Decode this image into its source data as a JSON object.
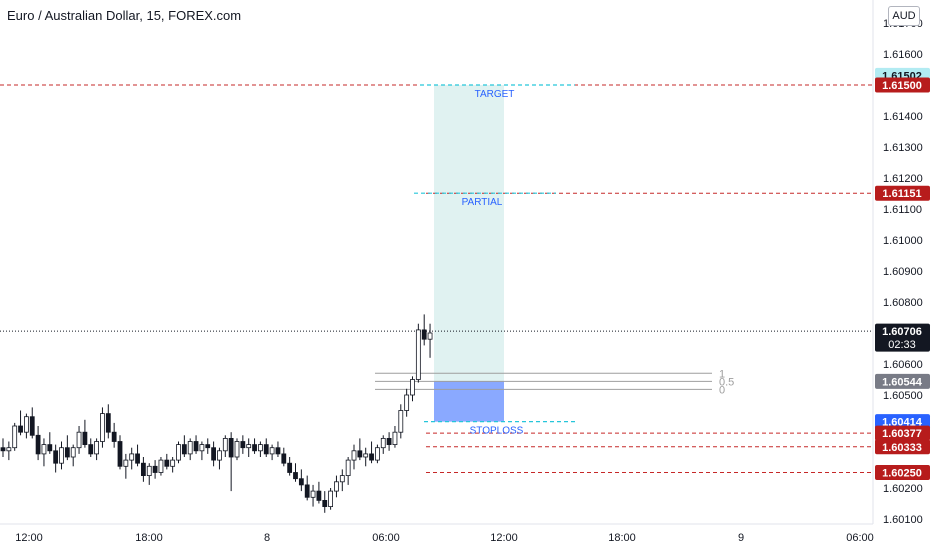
{
  "header": {
    "title": "Euro / Australian Dollar, 15, FOREX.com",
    "currency_button": "AUD"
  },
  "chart_data": {
    "type": "candlestick",
    "title": "Euro / Australian Dollar, 15, FOREX.com",
    "symbol": "EURAUD",
    "timeframe": "15",
    "y_axis": {
      "position": "right",
      "ylim": [
        1.6008,
        1.6172
      ],
      "ticks": [
        "1.60100",
        "1.60200",
        "1.60500",
        "1.60600",
        "1.60800",
        "1.60900",
        "1.61000",
        "1.61100",
        "1.61200",
        "1.61300",
        "1.61400",
        "1.61600",
        "1.61700"
      ]
    },
    "x_axis": {
      "ticks": [
        "12:00",
        "18:00",
        "8",
        "06:00",
        "12:00",
        "18:00",
        "9",
        "06:00"
      ]
    },
    "price_labels": [
      {
        "value": "1.61502",
        "bg": "#b2ebf2",
        "fg": "#131722"
      },
      {
        "value": "1.61500",
        "bg": "#b71c1c",
        "fg": "#ffffff"
      },
      {
        "value": "1.61151",
        "bg": "#b71c1c",
        "fg": "#ffffff"
      },
      {
        "value": "1.60706",
        "sub": "02:33",
        "bg": "#131722",
        "fg": "#ffffff"
      },
      {
        "value": "1.60544",
        "bg": "#787b86",
        "fg": "#ffffff"
      },
      {
        "value": "1.60414",
        "bg": "#2962ff",
        "fg": "#ffffff"
      },
      {
        "value": "1.60377",
        "bg": "#b71c1c",
        "fg": "#ffffff"
      },
      {
        "value": "1.60333",
        "bg": "#b71c1c",
        "fg": "#ffffff"
      },
      {
        "value": "1.60250",
        "bg": "#b71c1c",
        "fg": "#ffffff"
      }
    ],
    "horizontal_lines": [
      {
        "price": 1.615,
        "color": "#c62828",
        "style": "dashed"
      },
      {
        "price": 1.61151,
        "color": "#c62828",
        "style": "dashed"
      },
      {
        "price": 1.60706,
        "color": "#131722",
        "style": "dotted"
      },
      {
        "price": 1.60377,
        "color": "#c62828",
        "style": "dashed"
      },
      {
        "price": 1.60333,
        "color": "#c62828",
        "style": "dashed"
      },
      {
        "price": 1.6025,
        "color": "#c62828",
        "style": "dashed"
      }
    ],
    "annotations": [
      {
        "text": "TARGET",
        "price": 1.615
      },
      {
        "text": "PARTIAL",
        "price": 1.61151
      },
      {
        "text": "STOPLOSS",
        "price": 1.60414
      }
    ],
    "position_tool": {
      "target": 1.615,
      "entry": 1.60544,
      "stop": 1.60414,
      "profit_color": "#b2dfdb",
      "loss_color": "#2962ff"
    },
    "fib_levels": [
      {
        "label": "1",
        "price": 1.6057
      },
      {
        "label": "0.5",
        "price": 1.60544
      },
      {
        "label": "0",
        "price": 1.60518
      }
    ],
    "candles": [
      [
        1.6033,
        1.6036,
        1.603,
        1.6032
      ],
      [
        1.6032,
        1.6035,
        1.6029,
        1.6033
      ],
      [
        1.6033,
        1.6041,
        1.6032,
        1.604
      ],
      [
        1.604,
        1.6045,
        1.6037,
        1.6038
      ],
      [
        1.6038,
        1.6044,
        1.6036,
        1.6043
      ],
      [
        1.6043,
        1.6046,
        1.6036,
        1.6037
      ],
      [
        1.6037,
        1.604,
        1.6029,
        1.6031
      ],
      [
        1.6031,
        1.6036,
        1.6027,
        1.6034
      ],
      [
        1.6034,
        1.6038,
        1.6031,
        1.6032
      ],
      [
        1.6032,
        1.6034,
        1.6025,
        1.6028
      ],
      [
        1.6028,
        1.6035,
        1.6026,
        1.6033
      ],
      [
        1.6033,
        1.6037,
        1.6029,
        1.603
      ],
      [
        1.603,
        1.6034,
        1.6027,
        1.6033
      ],
      [
        1.6033,
        1.604,
        1.6031,
        1.6038
      ],
      [
        1.6038,
        1.6042,
        1.6033,
        1.6034
      ],
      [
        1.6034,
        1.6036,
        1.603,
        1.6031
      ],
      [
        1.6031,
        1.6036,
        1.6029,
        1.6035
      ],
      [
        1.6035,
        1.6046,
        1.6033,
        1.6044
      ],
      [
        1.6044,
        1.6047,
        1.6036,
        1.6038
      ],
      [
        1.6038,
        1.6041,
        1.6033,
        1.6035
      ],
      [
        1.6035,
        1.6037,
        1.6026,
        1.6027
      ],
      [
        1.6027,
        1.6031,
        1.6023,
        1.6029
      ],
      [
        1.6029,
        1.6033,
        1.6026,
        1.6031
      ],
      [
        1.6031,
        1.6034,
        1.6027,
        1.6028
      ],
      [
        1.6028,
        1.603,
        1.6022,
        1.6024
      ],
      [
        1.6024,
        1.6028,
        1.6021,
        1.6027
      ],
      [
        1.6027,
        1.6029,
        1.6023,
        1.6025
      ],
      [
        1.6025,
        1.603,
        1.6024,
        1.6029
      ],
      [
        1.6029,
        1.6031,
        1.6026,
        1.6027
      ],
      [
        1.6027,
        1.603,
        1.6025,
        1.6029
      ],
      [
        1.6029,
        1.6035,
        1.6028,
        1.6034
      ],
      [
        1.6034,
        1.6037,
        1.603,
        1.6031
      ],
      [
        1.6031,
        1.6036,
        1.6029,
        1.6035
      ],
      [
        1.6035,
        1.6037,
        1.6031,
        1.6032
      ],
      [
        1.6032,
        1.6035,
        1.6029,
        1.6034
      ],
      [
        1.6034,
        1.6036,
        1.6031,
        1.6033
      ],
      [
        1.6033,
        1.6035,
        1.6027,
        1.6029
      ],
      [
        1.6029,
        1.6033,
        1.6026,
        1.6032
      ],
      [
        1.6032,
        1.6037,
        1.603,
        1.6036
      ],
      [
        1.6036,
        1.6038,
        1.6019,
        1.603
      ],
      [
        1.603,
        1.6036,
        1.6029,
        1.6035
      ],
      [
        1.6035,
        1.6037,
        1.6031,
        1.6033
      ],
      [
        1.6033,
        1.6036,
        1.603,
        1.6034
      ],
      [
        1.6034,
        1.6036,
        1.6031,
        1.6032
      ],
      [
        1.6032,
        1.6035,
        1.603,
        1.6034
      ],
      [
        1.6034,
        1.6036,
        1.603,
        1.6031
      ],
      [
        1.6031,
        1.6034,
        1.6029,
        1.6033
      ],
      [
        1.6033,
        1.6035,
        1.603,
        1.6031
      ],
      [
        1.6031,
        1.6033,
        1.6027,
        1.6028
      ],
      [
        1.6028,
        1.603,
        1.6024,
        1.6025
      ],
      [
        1.6025,
        1.6028,
        1.6022,
        1.6023
      ],
      [
        1.6023,
        1.6026,
        1.6019,
        1.6021
      ],
      [
        1.6021,
        1.6024,
        1.6016,
        1.6017
      ],
      [
        1.6017,
        1.6021,
        1.6014,
        1.6019
      ],
      [
        1.6019,
        1.6022,
        1.6015,
        1.6016
      ],
      [
        1.6016,
        1.6019,
        1.6012,
        1.6014
      ],
      [
        1.6014,
        1.602,
        1.6013,
        1.6019
      ],
      [
        1.6019,
        1.6024,
        1.6017,
        1.6022
      ],
      [
        1.6022,
        1.6026,
        1.6019,
        1.6024
      ],
      [
        1.6024,
        1.603,
        1.6021,
        1.6029
      ],
      [
        1.6029,
        1.6034,
        1.6026,
        1.6032
      ],
      [
        1.6032,
        1.6036,
        1.6029,
        1.603
      ],
      [
        1.603,
        1.6033,
        1.6027,
        1.6031
      ],
      [
        1.6031,
        1.6035,
        1.6028,
        1.6029
      ],
      [
        1.6029,
        1.6034,
        1.6028,
        1.6033
      ],
      [
        1.6033,
        1.6037,
        1.6031,
        1.6036
      ],
      [
        1.6036,
        1.6038,
        1.6032,
        1.6034
      ],
      [
        1.6034,
        1.604,
        1.6033,
        1.6038
      ],
      [
        1.6038,
        1.6047,
        1.6036,
        1.6045
      ],
      [
        1.6045,
        1.6052,
        1.6043,
        1.605
      ],
      [
        1.605,
        1.6056,
        1.6048,
        1.6055
      ],
      [
        1.6055,
        1.6073,
        1.6054,
        1.6071
      ],
      [
        1.6071,
        1.6076,
        1.6066,
        1.6068
      ],
      [
        1.6068,
        1.6073,
        1.6062,
        1.607
      ]
    ]
  }
}
